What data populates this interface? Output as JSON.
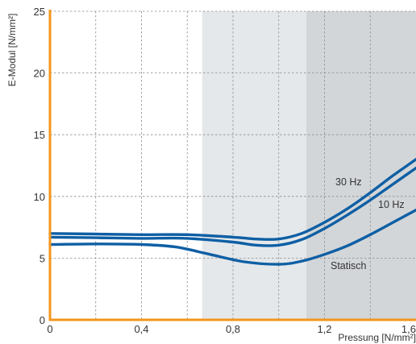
{
  "chart_data": {
    "type": "line",
    "xlabel": "Pressung [N/mm²]",
    "ylabel": "E-Modul [N/mm²]",
    "xlim": [
      0,
      1.6
    ],
    "ylim": [
      0,
      25
    ],
    "x_ticks": [
      0,
      0.4,
      0.8,
      1.2,
      1.6
    ],
    "x_tick_labels": [
      "0",
      "0,4",
      "0,8",
      "1,2",
      "1,6"
    ],
    "y_ticks": [
      0,
      5,
      10,
      15,
      20,
      25
    ],
    "y_tick_labels": [
      "0",
      "5",
      "10",
      "15",
      "20",
      "25"
    ],
    "grid": "dashed",
    "shaded_regions": [
      {
        "from": 0.665,
        "to": 1.12,
        "color": "#e5e8eb"
      },
      {
        "from": 1.12,
        "to": 1.6,
        "color": "#d3d6d9"
      }
    ],
    "series": [
      {
        "name": "30 Hz",
        "x": [
          0,
          0.2,
          0.4,
          0.6,
          0.8,
          0.9,
          1.0,
          1.1,
          1.2,
          1.3,
          1.4,
          1.5,
          1.6
        ],
        "y": [
          7.0,
          6.95,
          6.9,
          6.9,
          6.7,
          6.55,
          6.55,
          7.0,
          7.9,
          9.0,
          10.3,
          11.7,
          13.0
        ]
      },
      {
        "name": "10 Hz",
        "x": [
          0,
          0.2,
          0.4,
          0.6,
          0.8,
          0.9,
          1.0,
          1.1,
          1.2,
          1.3,
          1.4,
          1.5,
          1.6
        ],
        "y": [
          6.7,
          6.65,
          6.6,
          6.6,
          6.3,
          6.05,
          6.05,
          6.5,
          7.4,
          8.5,
          9.7,
          11.0,
          12.3
        ]
      },
      {
        "name": "Statisch",
        "x": [
          0,
          0.2,
          0.4,
          0.55,
          0.7,
          0.85,
          1.0,
          1.1,
          1.2,
          1.3,
          1.4,
          1.5,
          1.6
        ],
        "y": [
          6.1,
          6.15,
          6.1,
          5.9,
          5.3,
          4.7,
          4.5,
          4.75,
          5.3,
          6.0,
          6.9,
          7.9,
          8.9
        ]
      }
    ],
    "line_color": "#0e5fa4",
    "axis_color": "#f3961c",
    "grid_color": "#8c8c8c"
  }
}
